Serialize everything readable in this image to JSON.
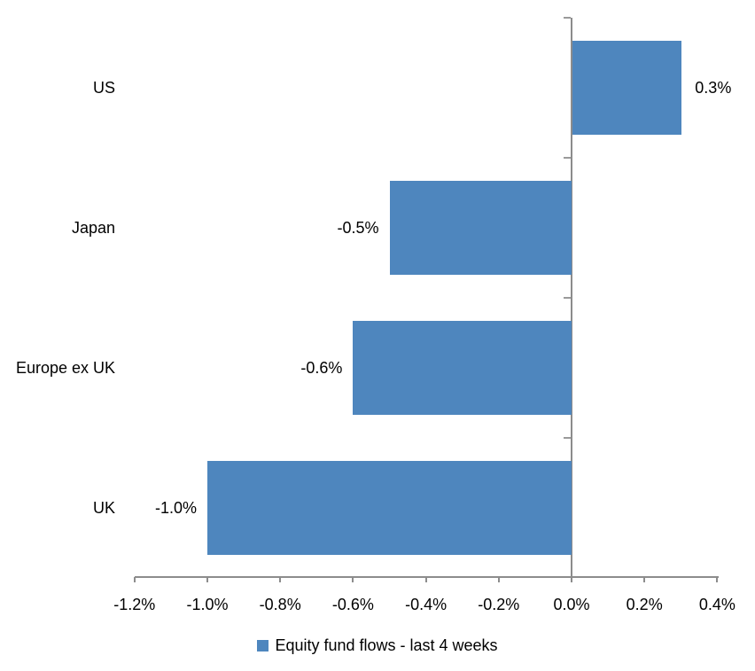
{
  "chart_data": {
    "type": "bar",
    "orientation": "horizontal",
    "title": "",
    "xlabel": "",
    "ylabel": "",
    "categories": [
      "US",
      "Japan",
      "Europe ex UK",
      "UK"
    ],
    "series": [
      {
        "name": "Equity fund flows - last 4 weeks",
        "values": [
          0.3,
          -0.5,
          -0.6,
          -1.0
        ],
        "data_labels": [
          "0.3%",
          "-0.5%",
          "-0.6%",
          "-1.0%"
        ]
      }
    ],
    "xlim": [
      -1.2,
      0.4
    ],
    "x_ticks": [
      -1.2,
      -1.0,
      -0.8,
      -0.6,
      -0.4,
      -0.2,
      0.0,
      0.2,
      0.4
    ],
    "x_tick_labels": [
      "-1.2%",
      "-1.0%",
      "-0.8%",
      "-0.6%",
      "-0.4%",
      "-0.2%",
      "0.0%",
      "0.2%",
      "0.4%"
    ],
    "grid": false,
    "legend_position": "bottom-center",
    "colors": {
      "bar_fill": "#4e86be",
      "axis_line": "#8c8c8c",
      "text": "#000000",
      "background": "#ffffff"
    }
  },
  "legend": {
    "label": "Equity fund flows - last 4 weeks"
  }
}
